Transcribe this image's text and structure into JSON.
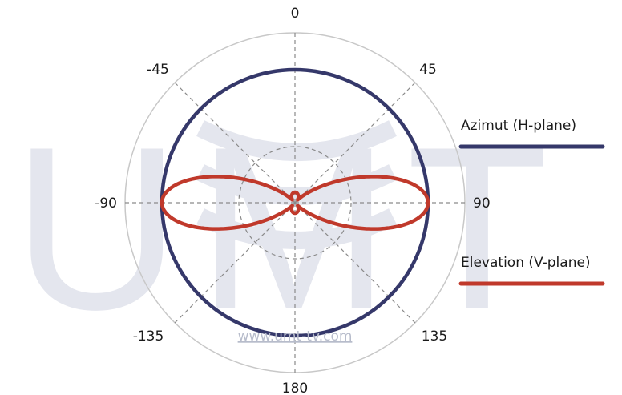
{
  "chart_data": {
    "type": "polar",
    "angle_labels": [
      "0",
      "45",
      "90",
      "135",
      "180",
      "-135",
      "-90",
      "-45"
    ],
    "angles_deg": [
      0,
      45,
      90,
      135,
      180,
      -135,
      -90,
      -45
    ],
    "series": [
      {
        "name": "Azimut (H-plane)",
        "color": "#35386a",
        "pattern": "omnidirectional",
        "r": 0.87
      },
      {
        "name": "Elevation (V-plane)",
        "color": "#c0392b",
        "pattern": "figure-eight",
        "lobe_direction_deg": [
          90,
          -90
        ],
        "r_max": 0.87
      }
    ],
    "grid": true,
    "legend_position": "right"
  },
  "watermark": {
    "logo_text": "UMT",
    "url": "www.umt-tv.com",
    "color": "#e4e6ee"
  }
}
